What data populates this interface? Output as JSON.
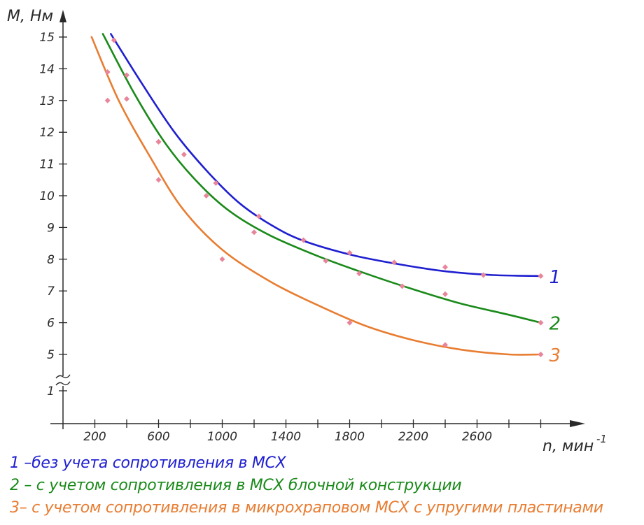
{
  "chart_data": {
    "type": "line",
    "ylabel": "M, Нм",
    "xlabel": "n, мин",
    "xlabel_exp": "-1",
    "x_ticks": [
      200,
      600,
      1000,
      1400,
      1800,
      2200,
      2600
    ],
    "y_ticks_upper": [
      5,
      6,
      7,
      8,
      9,
      10,
      11,
      12,
      13,
      14,
      15
    ],
    "y_ticks_lower": [
      1
    ],
    "xlim": [
      0,
      3100
    ],
    "ylim": [
      4.3,
      15.4
    ],
    "axis_break": true,
    "grid": false,
    "series": [
      {
        "name": "1",
        "color": "#1f1fd0",
        "curve": [
          [
            300,
            15.1
          ],
          [
            500,
            13.5
          ],
          [
            700,
            12.0
          ],
          [
            900,
            10.8
          ],
          [
            1100,
            9.8
          ],
          [
            1300,
            9.1
          ],
          [
            1500,
            8.6
          ],
          [
            1800,
            8.15
          ],
          [
            2100,
            7.85
          ],
          [
            2400,
            7.62
          ],
          [
            2700,
            7.5
          ],
          [
            3000,
            7.47
          ]
        ],
        "points": [
          [
            320,
            14.9
          ],
          [
            400,
            13.8
          ],
          [
            600,
            11.7
          ],
          [
            760,
            11.3
          ],
          [
            960,
            10.4
          ],
          [
            1230,
            9.35
          ],
          [
            1510,
            8.6
          ],
          [
            1800,
            8.2
          ],
          [
            2080,
            7.9
          ],
          [
            2400,
            7.75
          ],
          [
            2640,
            7.5
          ],
          [
            3000,
            7.47
          ]
        ]
      },
      {
        "name": "2",
        "color": "#1a8a1a",
        "curve": [
          [
            250,
            15.1
          ],
          [
            450,
            13.2
          ],
          [
            650,
            11.6
          ],
          [
            850,
            10.4
          ],
          [
            1050,
            9.5
          ],
          [
            1300,
            8.75
          ],
          [
            1600,
            8.1
          ],
          [
            1900,
            7.55
          ],
          [
            2200,
            7.05
          ],
          [
            2500,
            6.6
          ],
          [
            2800,
            6.25
          ],
          [
            3000,
            6.0
          ]
        ],
        "points": [
          [
            280,
            13.9
          ],
          [
            400,
            13.05
          ],
          [
            600,
            11.7
          ],
          [
            900,
            10.0
          ],
          [
            1200,
            8.85
          ],
          [
            1650,
            7.95
          ],
          [
            1860,
            7.55
          ],
          [
            2130,
            7.15
          ],
          [
            2400,
            6.9
          ],
          [
            3000,
            6.0
          ]
        ]
      },
      {
        "name": "3",
        "color": "#e87d32",
        "curve": [
          [
            180,
            15.0
          ],
          [
            350,
            13.0
          ],
          [
            550,
            11.2
          ],
          [
            750,
            9.6
          ],
          [
            1000,
            8.3
          ],
          [
            1300,
            7.3
          ],
          [
            1600,
            6.55
          ],
          [
            1900,
            5.9
          ],
          [
            2200,
            5.45
          ],
          [
            2500,
            5.15
          ],
          [
            2800,
            5.0
          ],
          [
            3000,
            5.0
          ]
        ],
        "points": [
          [
            280,
            13.0
          ],
          [
            600,
            10.5
          ],
          [
            1000,
            8.0
          ],
          [
            1800,
            6.0
          ],
          [
            2400,
            5.3
          ],
          [
            3000,
            5.0
          ]
        ]
      }
    ],
    "marker_color": "#e8859a",
    "legend": [
      {
        "text": "1 –без учета сопротивления в МСХ",
        "color": "#1f1fd0"
      },
      {
        "text": "2 – с учетом сопротивления в МСХ блочной конструкции",
        "color": "#1a8a1a"
      },
      {
        "text": "3– с учетом сопротивления в микрохраповом МСХ с упругими пластинами",
        "color": "#e87d32"
      }
    ],
    "axis_color": "#2a2a2a"
  }
}
